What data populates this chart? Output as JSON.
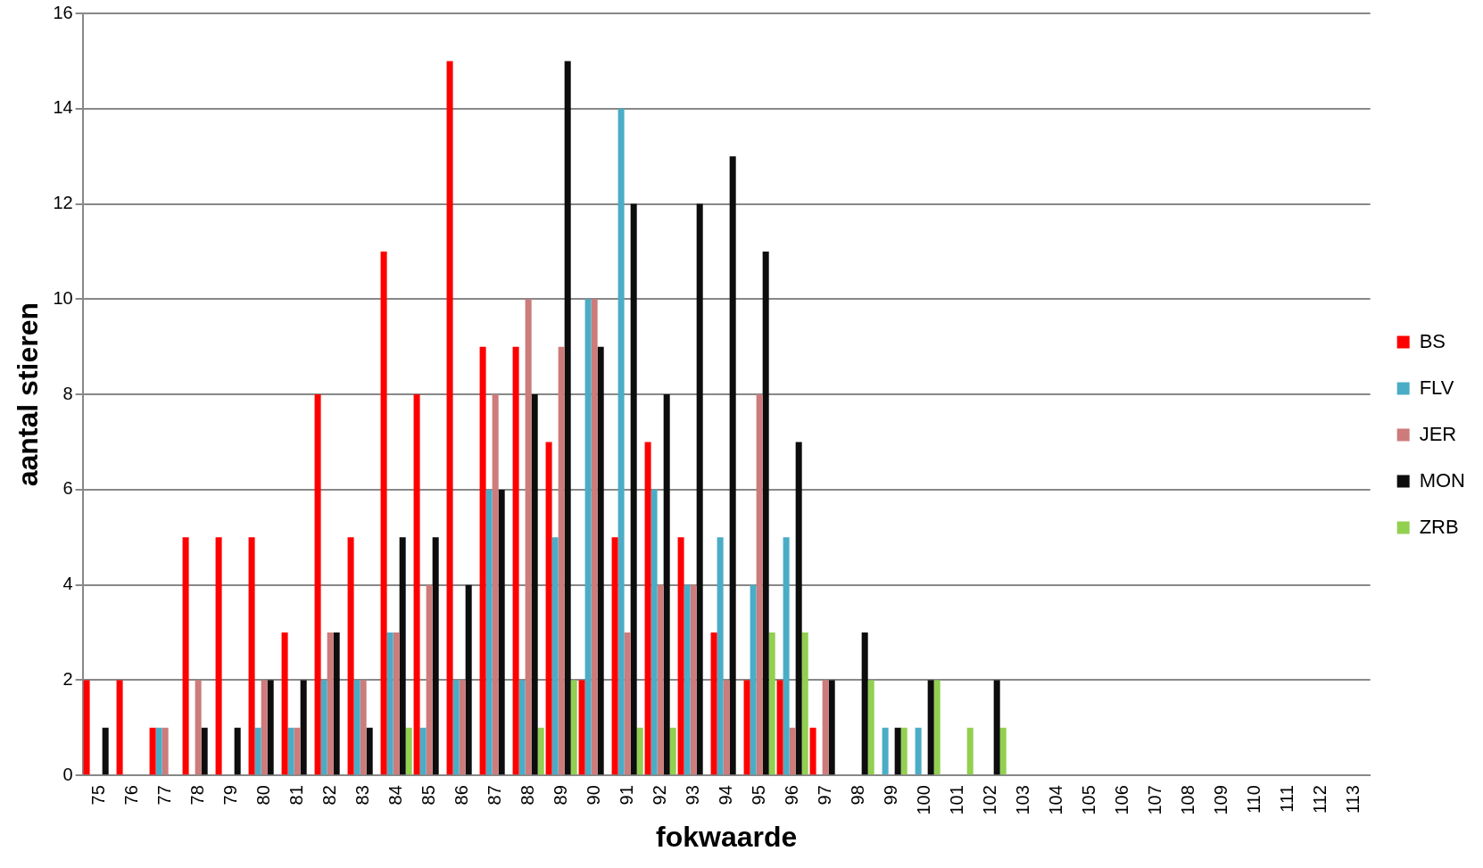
{
  "chart_data": {
    "type": "bar",
    "xlabel": "fokwaarde",
    "ylabel": "aantal stieren",
    "categories": [
      "75",
      "76",
      "77",
      "78",
      "79",
      "80",
      "81",
      "82",
      "83",
      "84",
      "85",
      "86",
      "87",
      "88",
      "89",
      "90",
      "91",
      "92",
      "93",
      "94",
      "95",
      "96",
      "97",
      "98",
      "99",
      "100",
      "101",
      "102",
      "103",
      "104",
      "105",
      "106",
      "107",
      "108",
      "109",
      "110",
      "111",
      "112",
      "113"
    ],
    "series": [
      {
        "name": "BS",
        "color": "#ff0000",
        "values": [
          2,
          2,
          1,
          5,
          5,
          5,
          3,
          8,
          5,
          11,
          8,
          15,
          9,
          9,
          7,
          2,
          5,
          7,
          5,
          3,
          2,
          2,
          1,
          0,
          0,
          0,
          0,
          0,
          0,
          0,
          0,
          0,
          0,
          0,
          0,
          0,
          0,
          0,
          0
        ]
      },
      {
        "name": "FLV",
        "color": "#4bacc6",
        "values": [
          0,
          0,
          1,
          0,
          0,
          1,
          1,
          2,
          2,
          3,
          1,
          2,
          6,
          2,
          5,
          10,
          14,
          6,
          4,
          5,
          4,
          5,
          0,
          0,
          1,
          1,
          0,
          0,
          0,
          0,
          0,
          0,
          0,
          0,
          0,
          0,
          0,
          0,
          0
        ]
      },
      {
        "name": "JER",
        "color": "#cd7b7b",
        "values": [
          0,
          0,
          1,
          2,
          0,
          2,
          1,
          3,
          2,
          3,
          4,
          2,
          8,
          10,
          9,
          10,
          3,
          4,
          4,
          2,
          8,
          1,
          2,
          0,
          0,
          0,
          0,
          0,
          0,
          0,
          0,
          0,
          0,
          0,
          0,
          0,
          0,
          0,
          0
        ]
      },
      {
        "name": "MON",
        "color": "#0d0d0d",
        "values": [
          1,
          0,
          0,
          1,
          1,
          2,
          2,
          3,
          1,
          5,
          5,
          4,
          6,
          8,
          15,
          9,
          12,
          8,
          12,
          13,
          11,
          7,
          2,
          3,
          1,
          2,
          0,
          2,
          0,
          0,
          0,
          0,
          0,
          0,
          0,
          0,
          0,
          0,
          0
        ]
      },
      {
        "name": "ZRB",
        "color": "#92d050",
        "values": [
          0,
          0,
          0,
          0,
          0,
          0,
          0,
          0,
          0,
          1,
          0,
          0,
          0,
          1,
          2,
          0,
          1,
          1,
          0,
          0,
          3,
          3,
          0,
          2,
          1,
          2,
          1,
          1,
          0,
          0,
          0,
          0,
          0,
          0,
          0,
          0,
          0,
          0,
          0
        ]
      }
    ],
    "ylim": [
      0,
      16
    ],
    "yticks": [
      0,
      2,
      4,
      6,
      8,
      10,
      12,
      14,
      16
    ],
    "grid": "y",
    "legend": "right"
  }
}
